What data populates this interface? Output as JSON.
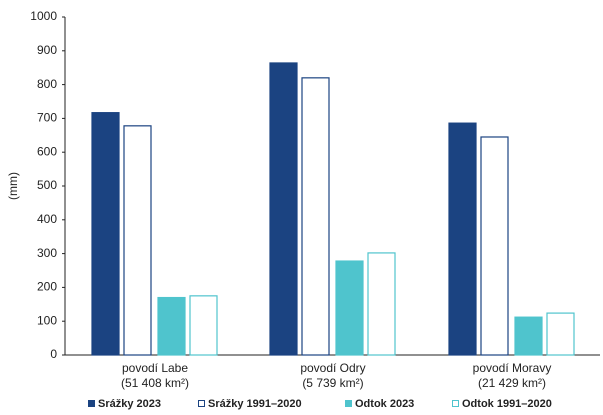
{
  "chart_data": {
    "type": "bar",
    "y_label": "(mm)",
    "categories": [
      "povodí Labe\n(51 408 km²)",
      "povodí Odry\n(5 739 km²)",
      "povodí Moravy\n(21 429 km²)"
    ],
    "series": [
      {
        "name": "Srážky 2023",
        "color": "#1b4381",
        "fill": "#1b4381",
        "values": [
          717,
          864,
          686
        ]
      },
      {
        "name": "Srážky 1991–2020",
        "color": "#1b4381",
        "fill": "#ffffff",
        "values": [
          678,
          820,
          645
        ]
      },
      {
        "name": "Odtok 2023",
        "color": "#4fc4cd",
        "fill": "#4fc4cd",
        "values": [
          170,
          278,
          112
        ]
      },
      {
        "name": "Odtok 1991–2020",
        "color": "#4fc4cd",
        "fill": "#ffffff",
        "values": [
          175,
          302,
          124
        ]
      }
    ],
    "ylim": [
      0,
      1000
    ],
    "yticks": [
      0,
      100,
      200,
      300,
      400,
      500,
      600,
      700,
      800,
      900,
      1000
    ],
    "grid": false
  }
}
